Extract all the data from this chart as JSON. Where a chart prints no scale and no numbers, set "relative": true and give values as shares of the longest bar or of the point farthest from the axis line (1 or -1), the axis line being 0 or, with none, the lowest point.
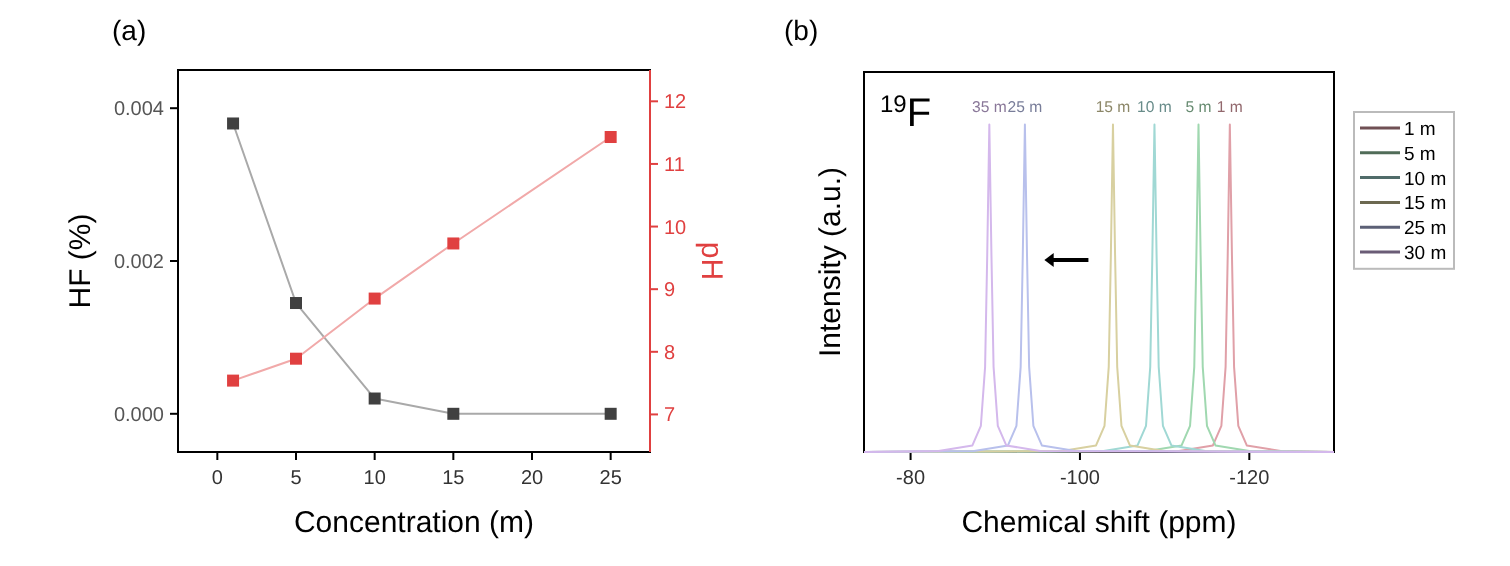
{
  "chart_data": [
    {
      "type": "line",
      "title": "(a)",
      "xlabel": "Concentration (m)",
      "ylabel": "HF (%)",
      "y2label": "pH",
      "x": [
        1,
        5,
        10,
        15,
        25
      ],
      "xlim": [
        -2.5,
        27.5
      ],
      "xticks": [
        0,
        5,
        10,
        15,
        20,
        25
      ],
      "ylim": [
        -0.0005,
        0.0045
      ],
      "yticks": [
        {
          "value": 0,
          "label": "0.000"
        },
        {
          "value": 0.002,
          "label": "0.002"
        },
        {
          "value": 0.004,
          "label": "0.004"
        }
      ],
      "y2lim": [
        6.4,
        12.5
      ],
      "y2ticks": [
        7,
        8,
        9,
        10,
        11,
        12
      ],
      "marker": "square",
      "grid": false,
      "legend": false,
      "series": [
        {
          "color": "#404040",
          "values": [
            0.0038,
            0.00145,
            0.0002,
            0,
            0
          ]
        },
        {
          "color": "#e04040",
          "axis": "y2",
          "values": [
            7.54,
            7.89,
            8.85,
            9.73,
            11.43
          ]
        }
      ]
    },
    {
      "type": "line",
      "title": "(b)",
      "xlabel": "Chemical shift (ppm)",
      "ylabel": "Intensity (a.u.)",
      "relative": true,
      "xlim": [
        -74.5,
        -130
      ],
      "xticks": [
        -80,
        -100,
        -120
      ],
      "tick_labels": "x",
      "legend": "right",
      "marker": "none",
      "annotations": [
        "$^{19}$F",
        "35 m",
        "25 m",
        "15 m",
        "10 m",
        "5 m",
        "1 m"
      ],
      "series": [
        {
          "name": "1 m",
          "color": "#e0a0a8",
          "x": [
            -74.5,
            -111.7,
            -115.7,
            -116.7,
            -117.2,
            -117.45,
            -117.7,
            -117.95,
            -118.2,
            -118.7,
            -119.7,
            -123.7,
            -130
          ],
          "values": [
            0,
            0.003,
            0.02,
            0.08,
            0.26,
            0.6,
            1,
            0.6,
            0.26,
            0.08,
            0.02,
            0.003,
            0
          ]
        },
        {
          "name": "5 m",
          "color": "#a0d8b0",
          "x": [
            -74.5,
            -108,
            -112,
            -113,
            -113.5,
            -113.75,
            -114,
            -114.25,
            -114.5,
            -115,
            -116,
            -120,
            -130
          ],
          "values": [
            0,
            0.003,
            0.02,
            0.08,
            0.26,
            0.6,
            1,
            0.6,
            0.26,
            0.08,
            0.02,
            0.003,
            0
          ]
        },
        {
          "name": "10 m",
          "color": "#a0d8d4",
          "x": [
            -74.5,
            -102.8,
            -106.8,
            -107.8,
            -108.3,
            -108.55,
            -108.8,
            -109.05,
            -109.3,
            -109.8,
            -110.8,
            -114.8,
            -130
          ],
          "values": [
            0,
            0.003,
            0.02,
            0.08,
            0.26,
            0.6,
            1,
            0.6,
            0.26,
            0.08,
            0.02,
            0.003,
            0
          ]
        },
        {
          "name": "15 m",
          "color": "#d8d0a0",
          "x": [
            -74.5,
            -97.9,
            -101.9,
            -102.9,
            -103.4,
            -103.65,
            -103.9,
            -104.15,
            -104.4,
            -104.9,
            -105.9,
            -109.9,
            -130
          ],
          "values": [
            0,
            0.003,
            0.02,
            0.08,
            0.26,
            0.6,
            1,
            0.6,
            0.26,
            0.08,
            0.02,
            0.003,
            0
          ]
        },
        {
          "name": "25 m",
          "color": "#b8c0ec",
          "x": [
            -74.5,
            -87.5,
            -91.5,
            -92.5,
            -93,
            -93.25,
            -93.5,
            -93.75,
            -94,
            -94.5,
            -95.5,
            -99.5,
            -130
          ],
          "values": [
            0,
            0.003,
            0.02,
            0.08,
            0.26,
            0.6,
            1,
            0.6,
            0.26,
            0.08,
            0.02,
            0.003,
            0
          ]
        },
        {
          "name": "30 m",
          "color": "#d4b8ec",
          "x": [
            -74.5,
            -83.3,
            -87.3,
            -88.3,
            -88.8,
            -89.05,
            -89.3,
            -89.55,
            -89.8,
            -90.3,
            -91.3,
            -95.3,
            -130
          ],
          "values": [
            0,
            0.003,
            0.02,
            0.08,
            0.26,
            0.6,
            1,
            0.6,
            0.26,
            0.08,
            0.02,
            0.003,
            0
          ]
        }
      ]
    }
  ]
}
